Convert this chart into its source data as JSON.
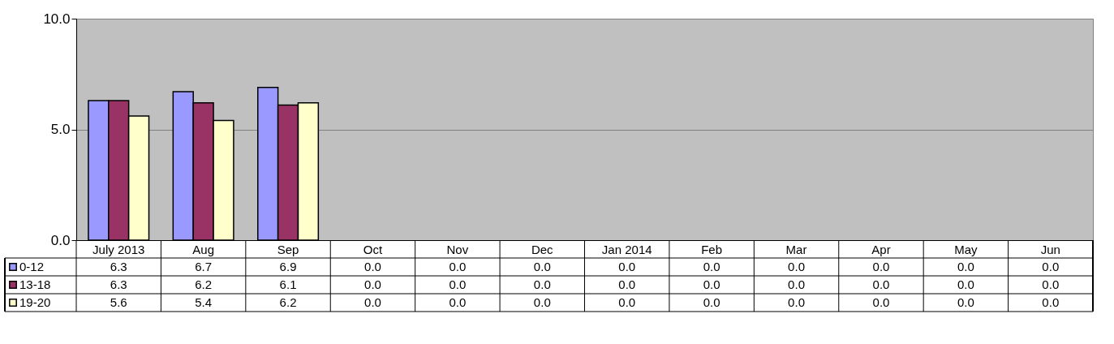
{
  "chart_data": {
    "type": "bar",
    "categories": [
      "July 2013",
      "Aug",
      "Sep",
      "Oct",
      "Nov",
      "Dec",
      "Jan 2014",
      "Feb",
      "Mar",
      "Apr",
      "May",
      "Jun"
    ],
    "series": [
      {
        "name": "0-12",
        "color": "#9999ff",
        "values": [
          6.3,
          6.7,
          6.9,
          0.0,
          0.0,
          0.0,
          0.0,
          0.0,
          0.0,
          0.0,
          0.0,
          0.0
        ],
        "value_labels": [
          "6.3",
          "6.7",
          "6.9",
          "0.0",
          "0.0",
          "0.0",
          "0.0",
          "0.0",
          "0.0",
          "0.0",
          "0.0",
          "0.0"
        ]
      },
      {
        "name": "13-18",
        "color": "#993366",
        "values": [
          6.3,
          6.2,
          6.1,
          0.0,
          0.0,
          0.0,
          0.0,
          0.0,
          0.0,
          0.0,
          0.0,
          0.0
        ],
        "value_labels": [
          "6.3",
          "6.2",
          "6.1",
          "0.0",
          "0.0",
          "0.0",
          "0.0",
          "0.0",
          "0.0",
          "0.0",
          "0.0",
          "0.0"
        ]
      },
      {
        "name": "19-20",
        "color": "#ffffcc",
        "values": [
          5.6,
          5.4,
          6.2,
          0.0,
          0.0,
          0.0,
          0.0,
          0.0,
          0.0,
          0.0,
          0.0,
          0.0
        ],
        "value_labels": [
          "5.6",
          "5.4",
          "6.2",
          "0.0",
          "0.0",
          "0.0",
          "0.0",
          "0.0",
          "0.0",
          "0.0",
          "0.0",
          "0.0"
        ]
      }
    ],
    "ylim": [
      0,
      10
    ],
    "yticks": [
      {
        "value": 0,
        "label": "0.0"
      },
      {
        "value": 5,
        "label": "5.0"
      },
      {
        "value": 10,
        "label": "10.0"
      }
    ],
    "grid": "y",
    "legend": "bottom left"
  }
}
